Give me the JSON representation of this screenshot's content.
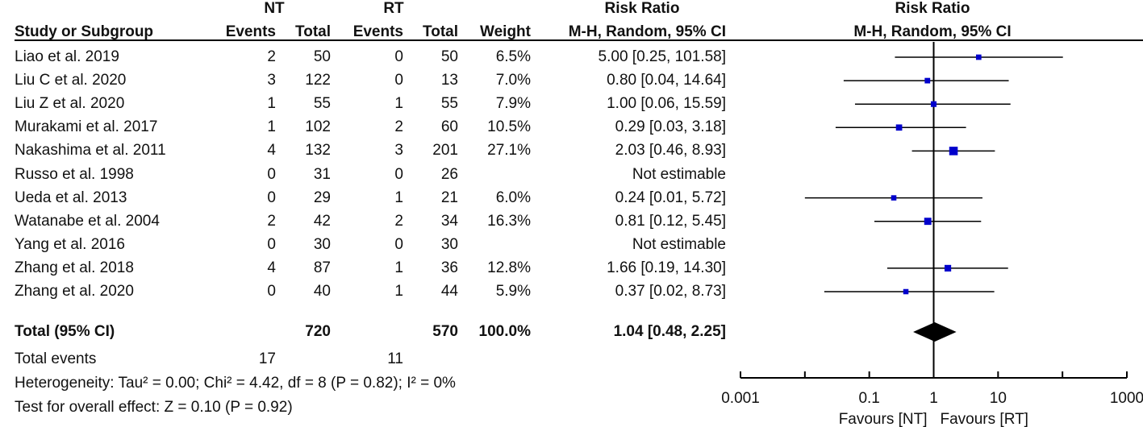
{
  "table": {
    "group_headers": {
      "nt": "NT",
      "rt": "RT",
      "rr_left": "Risk Ratio",
      "rr_right": "Risk Ratio"
    },
    "col_headers": {
      "study": "Study or Subgroup",
      "nt_events": "Events",
      "nt_total": "Total",
      "rt_events": "Events",
      "rt_total": "Total",
      "weight": "Weight",
      "method_left": "M-H, Random, 95% CI",
      "method_right": "M-H, Random, 95% CI"
    },
    "rows": [
      {
        "study": "Liao et al. 2019",
        "nt_events": "2",
        "nt_total": "50",
        "rt_events": "0",
        "rt_total": "50",
        "weight": "6.5%",
        "ci": "5.00 [0.25, 101.58]"
      },
      {
        "study": "Liu C et al. 2020",
        "nt_events": "3",
        "nt_total": "122",
        "rt_events": "0",
        "rt_total": "13",
        "weight": "7.0%",
        "ci": "0.80 [0.04, 14.64]"
      },
      {
        "study": "Liu Z et al. 2020",
        "nt_events": "1",
        "nt_total": "55",
        "rt_events": "1",
        "rt_total": "55",
        "weight": "7.9%",
        "ci": "1.00 [0.06, 15.59]"
      },
      {
        "study": "Murakami et al. 2017",
        "nt_events": "1",
        "nt_total": "102",
        "rt_events": "2",
        "rt_total": "60",
        "weight": "10.5%",
        "ci": "0.29 [0.03, 3.18]"
      },
      {
        "study": "Nakashima et al. 2011",
        "nt_events": "4",
        "nt_total": "132",
        "rt_events": "3",
        "rt_total": "201",
        "weight": "27.1%",
        "ci": "2.03 [0.46, 8.93]"
      },
      {
        "study": "Russo et al. 1998",
        "nt_events": "0",
        "nt_total": "31",
        "rt_events": "0",
        "rt_total": "26",
        "weight": "",
        "ci": "Not estimable"
      },
      {
        "study": "Ueda et al. 2013",
        "nt_events": "0",
        "nt_total": "29",
        "rt_events": "1",
        "rt_total": "21",
        "weight": "6.0%",
        "ci": "0.24 [0.01, 5.72]"
      },
      {
        "study": "Watanabe et al. 2004",
        "nt_events": "2",
        "nt_total": "42",
        "rt_events": "2",
        "rt_total": "34",
        "weight": "16.3%",
        "ci": "0.81 [0.12, 5.45]"
      },
      {
        "study": "Yang et al. 2016",
        "nt_events": "0",
        "nt_total": "30",
        "rt_events": "0",
        "rt_total": "30",
        "weight": "",
        "ci": "Not estimable"
      },
      {
        "study": "Zhang et al. 2018",
        "nt_events": "4",
        "nt_total": "87",
        "rt_events": "1",
        "rt_total": "36",
        "weight": "12.8%",
        "ci": "1.66 [0.19, 14.30]"
      },
      {
        "study": "Zhang et al. 2020",
        "nt_events": "0",
        "nt_total": "40",
        "rt_events": "1",
        "rt_total": "44",
        "weight": "5.9%",
        "ci": "0.37 [0.02, 8.73]"
      }
    ],
    "total": {
      "label": "Total (95% CI)",
      "nt_total": "720",
      "rt_total": "570",
      "weight": "100.0%",
      "ci": "1.04 [0.48, 2.25]"
    },
    "total_events": {
      "label": "Total events",
      "nt": "17",
      "rt": "11"
    },
    "heterogeneity": "Heterogeneity: Tau² = 0.00; Chi² = 4.42, df = 8 (P = 0.82); I² = 0%",
    "overall_effect": "Test for overall effect: Z = 0.10 (P = 0.92)"
  },
  "chart_data": {
    "type": "forest",
    "scale": "log",
    "xlim": [
      0.001,
      1000
    ],
    "ticks": [
      "0.001",
      "0.1",
      "1",
      "10",
      "1000"
    ],
    "tick_values": [
      0.001,
      0.1,
      1,
      10,
      1000
    ],
    "xlabel_left": "Favours [NT]",
    "xlabel_right": "Favours [RT]",
    "marker_color": "#0000cc",
    "studies": [
      {
        "rr": 5.0,
        "lo": 0.25,
        "hi": 101.58,
        "weight": 6.5
      },
      {
        "rr": 0.8,
        "lo": 0.04,
        "hi": 14.64,
        "weight": 7.0
      },
      {
        "rr": 1.0,
        "lo": 0.06,
        "hi": 15.59,
        "weight": 7.9
      },
      {
        "rr": 0.29,
        "lo": 0.03,
        "hi": 3.18,
        "weight": 10.5
      },
      {
        "rr": 2.03,
        "lo": 0.46,
        "hi": 8.93,
        "weight": 27.1
      },
      null,
      {
        "rr": 0.24,
        "lo": 0.01,
        "hi": 5.72,
        "weight": 6.0
      },
      {
        "rr": 0.81,
        "lo": 0.12,
        "hi": 5.45,
        "weight": 16.3
      },
      null,
      {
        "rr": 1.66,
        "lo": 0.19,
        "hi": 14.3,
        "weight": 12.8
      },
      {
        "rr": 0.37,
        "lo": 0.02,
        "hi": 8.73,
        "weight": 5.9
      }
    ],
    "pooled": {
      "rr": 1.04,
      "lo": 0.48,
      "hi": 2.25
    }
  }
}
